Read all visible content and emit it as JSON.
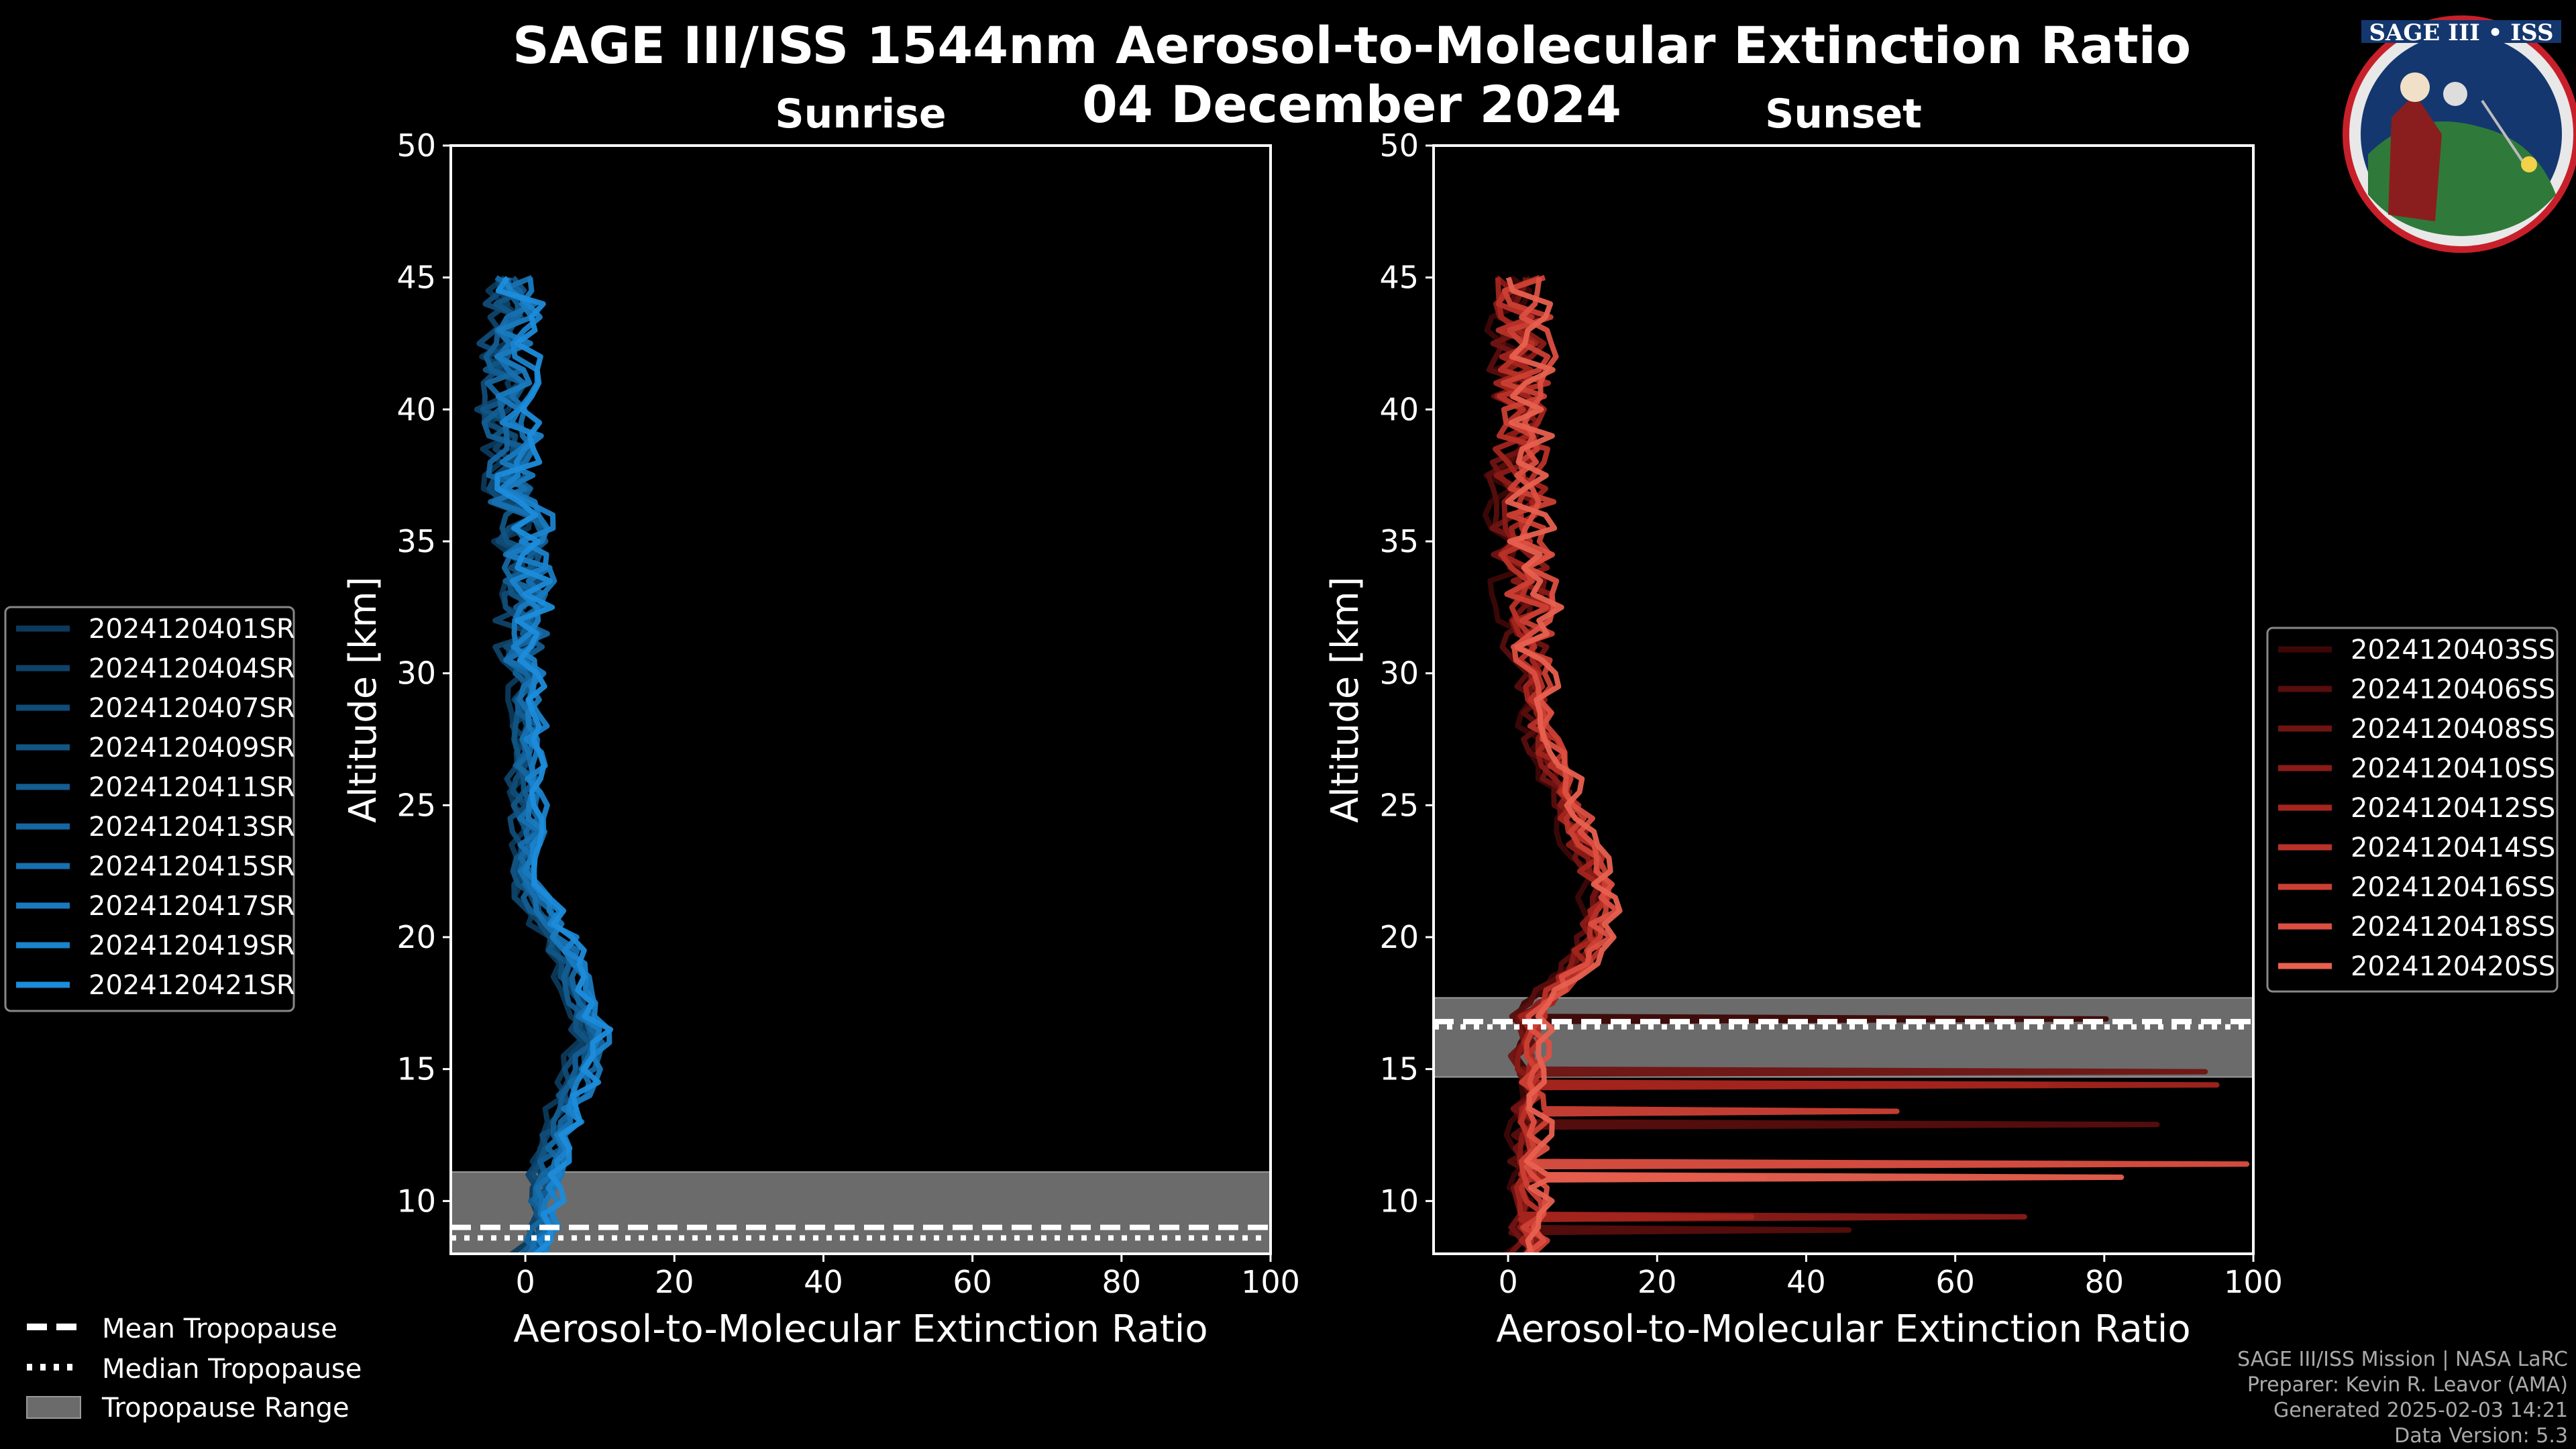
{
  "chart_data": {
    "type": "line",
    "title": "SAGE III/ISS 1544nm Aerosol-to-Molecular Extinction Ratio",
    "subtitle": "04 December 2024",
    "logo_text": "SAGE III • ISS",
    "credits": [
      "SAGE III/ISS Mission | NASA LaRC",
      "Preparer: Kevin R. Leavor (AMA)",
      "Generated 2025-02-03 14:21",
      "Data Version: 5.3"
    ],
    "tropo_legend": [
      {
        "label": "Mean Tropopause",
        "style": "dashed"
      },
      {
        "label": "Median Tropopause",
        "style": "dotted"
      },
      {
        "label": "Tropopause Range",
        "style": "box"
      }
    ],
    "panels": [
      {
        "name": "sunrise",
        "title": "Sunrise",
        "xlabel": "Aerosol-to-Molecular Extinction Ratio",
        "ylabel": "Altitude [km]",
        "xlim": [
          -10,
          100
        ],
        "ylim": [
          8,
          50
        ],
        "xticks": [
          "0",
          "20",
          "40",
          "60",
          "80",
          "100"
        ],
        "yticks": [
          "10",
          "15",
          "20",
          "25",
          "30",
          "35",
          "40",
          "45",
          "50"
        ],
        "tropopause": {
          "min": 8.0,
          "max": 11.1,
          "mean": 9.0,
          "median": 8.6
        },
        "legend": [
          "2024120401SR",
          "2024120404SR",
          "2024120407SR",
          "2024120409SR",
          "2024120411SR",
          "2024120413SR",
          "2024120415SR",
          "2024120417SR",
          "2024120419SR",
          "2024120421SR"
        ],
        "colors": [
          "#0c3a5c",
          "#0e4369",
          "#104c77",
          "#115585",
          "#135e93",
          "#1567a1",
          "#1770b0",
          "#197abf",
          "#1a83cd",
          "#1c8cdb"
        ]
      },
      {
        "name": "sunset",
        "title": "Sunset",
        "xlabel": "Aerosol-to-Molecular Extinction Ratio",
        "ylabel": "Altitude [km]",
        "xlim": [
          -10,
          100
        ],
        "ylim": [
          8,
          50
        ],
        "xticks": [
          "0",
          "20",
          "40",
          "60",
          "80",
          "100"
        ],
        "yticks": [
          "10",
          "15",
          "20",
          "25",
          "30",
          "35",
          "40",
          "45",
          "50"
        ],
        "tropopause": {
          "min": 14.7,
          "max": 17.7,
          "mean": 16.8,
          "median": 16.6
        },
        "legend": [
          "2024120403SS",
          "2024120406SS",
          "2024120408SS",
          "2024120410SS",
          "2024120412SS",
          "2024120414SS",
          "2024120416SS",
          "2024120418SS",
          "2024120420SS"
        ],
        "colors": [
          "#3d0707",
          "#570e0d",
          "#701412",
          "#8a1b17",
          "#a3251e",
          "#b93228",
          "#cc4034",
          "#dc4f41",
          "#e8604f"
        ]
      }
    ]
  }
}
